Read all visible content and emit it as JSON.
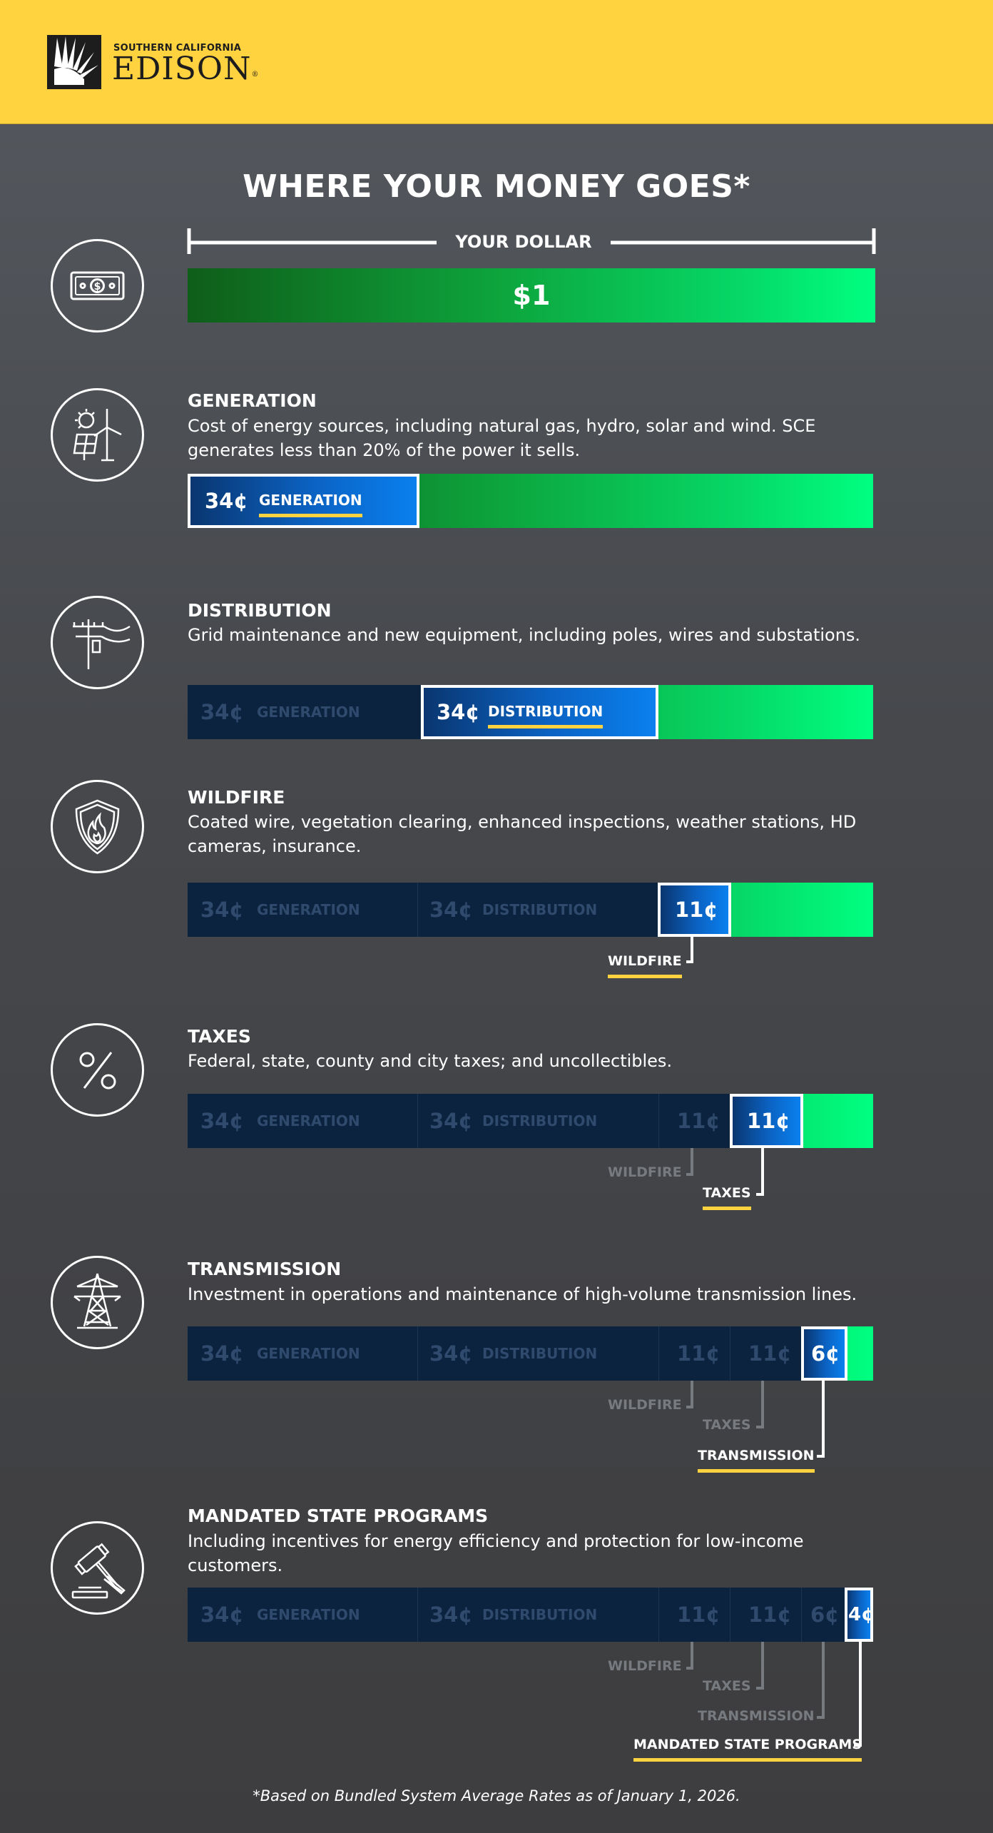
{
  "brand": {
    "name_small": "SOUTHERN CALIFORNIA",
    "name_big": "EDISON",
    "mark": "®",
    "colors": {
      "yellow": "#ffd23f",
      "navy": "#0c2340",
      "blue": "#0b63c4",
      "green": "#00ff80"
    }
  },
  "title": "WHERE YOUR MONEY GOES*",
  "dollar": {
    "label": "YOUR DOLLAR",
    "value": "$1",
    "icon": "dollar-bill-icon"
  },
  "sections": [
    {
      "title": "GENERATION",
      "description": "Cost of energy sources, including natural gas, hydro, solar and wind. SCE generates less than 20% of the power it sells.",
      "icon": "solar-wind-icon"
    },
    {
      "title": "DISTRIBUTION",
      "description": "Grid maintenance and new equipment, including poles, wires and substations.",
      "icon": "utility-pole-icon"
    },
    {
      "title": "WILDFIRE",
      "description": "Coated wire, vegetation clearing, enhanced inspections, weather stations, HD cameras, insurance.",
      "icon": "shield-flame-icon"
    },
    {
      "title": "TAXES",
      "description": "Federal, state, county and city taxes; and uncollectibles.",
      "icon": "percent-icon"
    },
    {
      "title": "TRANSMISSION",
      "description": "Investment in operations and maintenance of high-volume transmission lines.",
      "icon": "transmission-tower-icon"
    },
    {
      "title": "MANDATED STATE PROGRAMS",
      "description": "Including incentives for energy efficiency and protection for low-income customers.",
      "icon": "gavel-icon"
    }
  ],
  "segments": [
    {
      "amount": "34¢",
      "label": "GENERATION",
      "cents": 34
    },
    {
      "amount": "34¢",
      "label": "DISTRIBUTION",
      "cents": 34
    },
    {
      "amount": "11¢",
      "label": "WILDFIRE",
      "cents": 11
    },
    {
      "amount": "11¢",
      "label": "TAXES",
      "cents": 11
    },
    {
      "amount": "6¢",
      "label": "TRANSMISSION",
      "cents": 6
    },
    {
      "amount": "4¢",
      "label": "MANDATED STATE PROGRAMS",
      "cents": 4
    }
  ],
  "footnote": "*Based on Bundled System Average Rates as of January 1, 2026."
}
